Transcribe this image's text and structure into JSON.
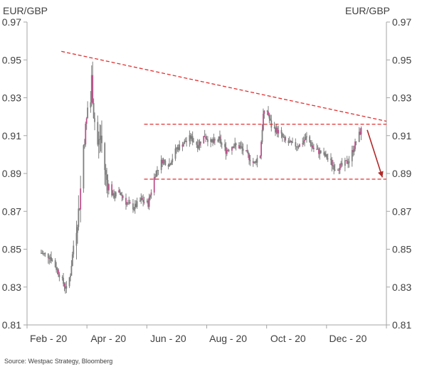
{
  "chart_data": {
    "type": "candlestick",
    "title_left": "EUR/GBP",
    "title_right": "EUR/GBP",
    "x_tick_labels": [
      "Feb - 20",
      "Apr - 20",
      "Jun - 20",
      "Aug - 20",
      "Oct - 20",
      "Dec - 20"
    ],
    "y_tick_labels": [
      "0.97",
      "0.95",
      "0.93",
      "0.91",
      "0.89",
      "0.87",
      "0.85",
      "0.83",
      "0.81"
    ],
    "ylim": [
      0.81,
      0.97
    ],
    "xlim": [
      "2020-01-20",
      "2021-01-10"
    ],
    "grid": false,
    "source": "Source: Westpac Strategy, Bloomberg",
    "colors": {
      "candle": "#7f7f7f",
      "candle_accent": "#c0508c",
      "annotation": "#e03030",
      "arrow": "#b02a2a",
      "axis": "#a6a6a6",
      "text": "#404040"
    },
    "anchors": [
      [
        "2020-02-03",
        0.848
      ],
      [
        "2020-02-12",
        0.846
      ],
      [
        "2020-02-20",
        0.838
      ],
      [
        "2020-02-25",
        0.832
      ],
      [
        "2020-02-28",
        0.829
      ],
      [
        "2020-03-03",
        0.837
      ],
      [
        "2020-03-06",
        0.852
      ],
      [
        "2020-03-09",
        0.862
      ],
      [
        "2020-03-12",
        0.874
      ],
      [
        "2020-03-16",
        0.905
      ],
      [
        "2020-03-19",
        0.918
      ],
      [
        "2020-03-20",
        0.925
      ],
      [
        "2020-03-23",
        0.928
      ],
      [
        "2020-03-24",
        0.94
      ],
      [
        "2020-03-26",
        0.922
      ],
      [
        "2020-03-30",
        0.905
      ],
      [
        "2020-04-02",
        0.91
      ],
      [
        "2020-04-07",
        0.888
      ],
      [
        "2020-04-14",
        0.878
      ],
      [
        "2020-04-21",
        0.88
      ],
      [
        "2020-04-28",
        0.874
      ],
      [
        "2020-05-05",
        0.872
      ],
      [
        "2020-05-12",
        0.876
      ],
      [
        "2020-05-19",
        0.874
      ],
      [
        "2020-05-26",
        0.89
      ],
      [
        "2020-06-02",
        0.897
      ],
      [
        "2020-06-09",
        0.895
      ],
      [
        "2020-06-16",
        0.903
      ],
      [
        "2020-06-23",
        0.906
      ],
      [
        "2020-06-30",
        0.909
      ],
      [
        "2020-07-07",
        0.905
      ],
      [
        "2020-07-14",
        0.91
      ],
      [
        "2020-07-21",
        0.906
      ],
      [
        "2020-07-28",
        0.908
      ],
      [
        "2020-08-04",
        0.902
      ],
      [
        "2020-08-11",
        0.905
      ],
      [
        "2020-08-18",
        0.904
      ],
      [
        "2020-08-25",
        0.9
      ],
      [
        "2020-09-01",
        0.895
      ],
      [
        "2020-09-04",
        0.898
      ],
      [
        "2020-09-07",
        0.9
      ],
      [
        "2020-09-10",
        0.921
      ],
      [
        "2020-09-14",
        0.923
      ],
      [
        "2020-09-18",
        0.915
      ],
      [
        "2020-09-25",
        0.912
      ],
      [
        "2020-10-02",
        0.907
      ],
      [
        "2020-10-09",
        0.905
      ],
      [
        "2020-10-16",
        0.905
      ],
      [
        "2020-10-23",
        0.909
      ],
      [
        "2020-10-30",
        0.903
      ],
      [
        "2020-11-06",
        0.901
      ],
      [
        "2020-11-13",
        0.898
      ],
      [
        "2020-11-20",
        0.893
      ],
      [
        "2020-11-27",
        0.894
      ],
      [
        "2020-12-04",
        0.897
      ],
      [
        "2020-12-11",
        0.907
      ],
      [
        "2020-12-16",
        0.913
      ]
    ],
    "annotations": [
      {
        "type": "trendline",
        "x1": "2020-02-23",
        "y1": 0.9545,
        "x2": "2021-01-10",
        "y2": 0.9176
      },
      {
        "type": "hline",
        "y": 0.916,
        "x1": "2020-05-15",
        "x2": "2021-01-10"
      },
      {
        "type": "hline",
        "y": 0.887,
        "x1": "2020-05-15",
        "x2": "2021-01-10"
      },
      {
        "type": "arrow",
        "x1": "2020-12-22",
        "y1": 0.913,
        "x2": "2021-01-06",
        "y2": 0.888
      }
    ]
  }
}
